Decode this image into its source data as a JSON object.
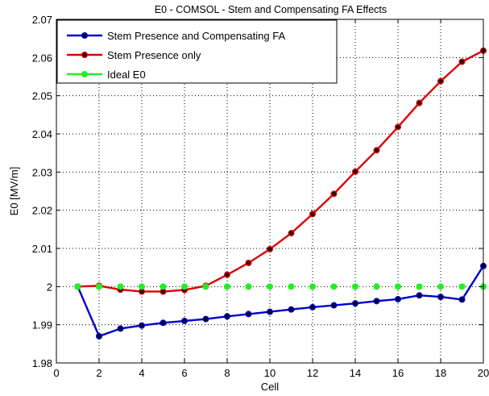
{
  "chart_data": {
    "type": "line",
    "title": "E0 - COMSOL - Stem and Compensating FA Effects",
    "xlabel": "Cell",
    "ylabel": "E0 [MV/m]",
    "xlim": [
      0,
      20
    ],
    "ylim": [
      1.98,
      2.07
    ],
    "xticks": [
      "0",
      "2",
      "4",
      "6",
      "8",
      "10",
      "12",
      "14",
      "16",
      "18",
      "20"
    ],
    "yticks": [
      "1.98",
      "1.99",
      "2",
      "2.01",
      "2.02",
      "2.03",
      "2.04",
      "2.05",
      "2.06",
      "2.07"
    ],
    "grid": true,
    "legend_position": "top-left",
    "series": [
      {
        "name": "Stem Presence and Compensating FA",
        "color": "#0000cc",
        "marker_color": "#00003a",
        "x": [
          1,
          2,
          3,
          4,
          5,
          6,
          7,
          8,
          9,
          10,
          11,
          12,
          13,
          14,
          15,
          16,
          17,
          18,
          19,
          20
        ],
        "values": [
          2.0,
          1.987,
          1.989,
          1.9898,
          1.9905,
          1.991,
          1.9915,
          1.9922,
          1.9928,
          1.9934,
          1.994,
          1.9946,
          1.9951,
          1.9956,
          1.9962,
          1.9967,
          1.9977,
          1.9973,
          1.9966,
          2.0054
        ]
      },
      {
        "name": "Stem Presence only",
        "color": "#dd0000",
        "marker_color": "#3a0000",
        "x": [
          1,
          2,
          3,
          4,
          5,
          6,
          7,
          8,
          9,
          10,
          11,
          12,
          13,
          14,
          15,
          16,
          17,
          18,
          19,
          20
        ],
        "values": [
          2.0,
          2.0002,
          1.9992,
          1.9987,
          1.9987,
          1.9991,
          2.0002,
          2.0031,
          2.0062,
          2.0098,
          2.014,
          2.019,
          2.0243,
          2.0301,
          2.0357,
          2.0418,
          2.0481,
          2.0538,
          2.0589,
          2.0618
        ]
      },
      {
        "name": "Ideal E0",
        "color": "#22ee22",
        "marker_color": "#22ee22",
        "x": [
          1,
          2,
          3,
          4,
          5,
          6,
          7,
          8,
          9,
          10,
          11,
          12,
          13,
          14,
          15,
          16,
          17,
          18,
          19,
          20
        ],
        "values": [
          2,
          2,
          2,
          2,
          2,
          2,
          2,
          2,
          2,
          2,
          2,
          2,
          2,
          2,
          2,
          2,
          2,
          2,
          2,
          2
        ],
        "line": false
      }
    ]
  }
}
